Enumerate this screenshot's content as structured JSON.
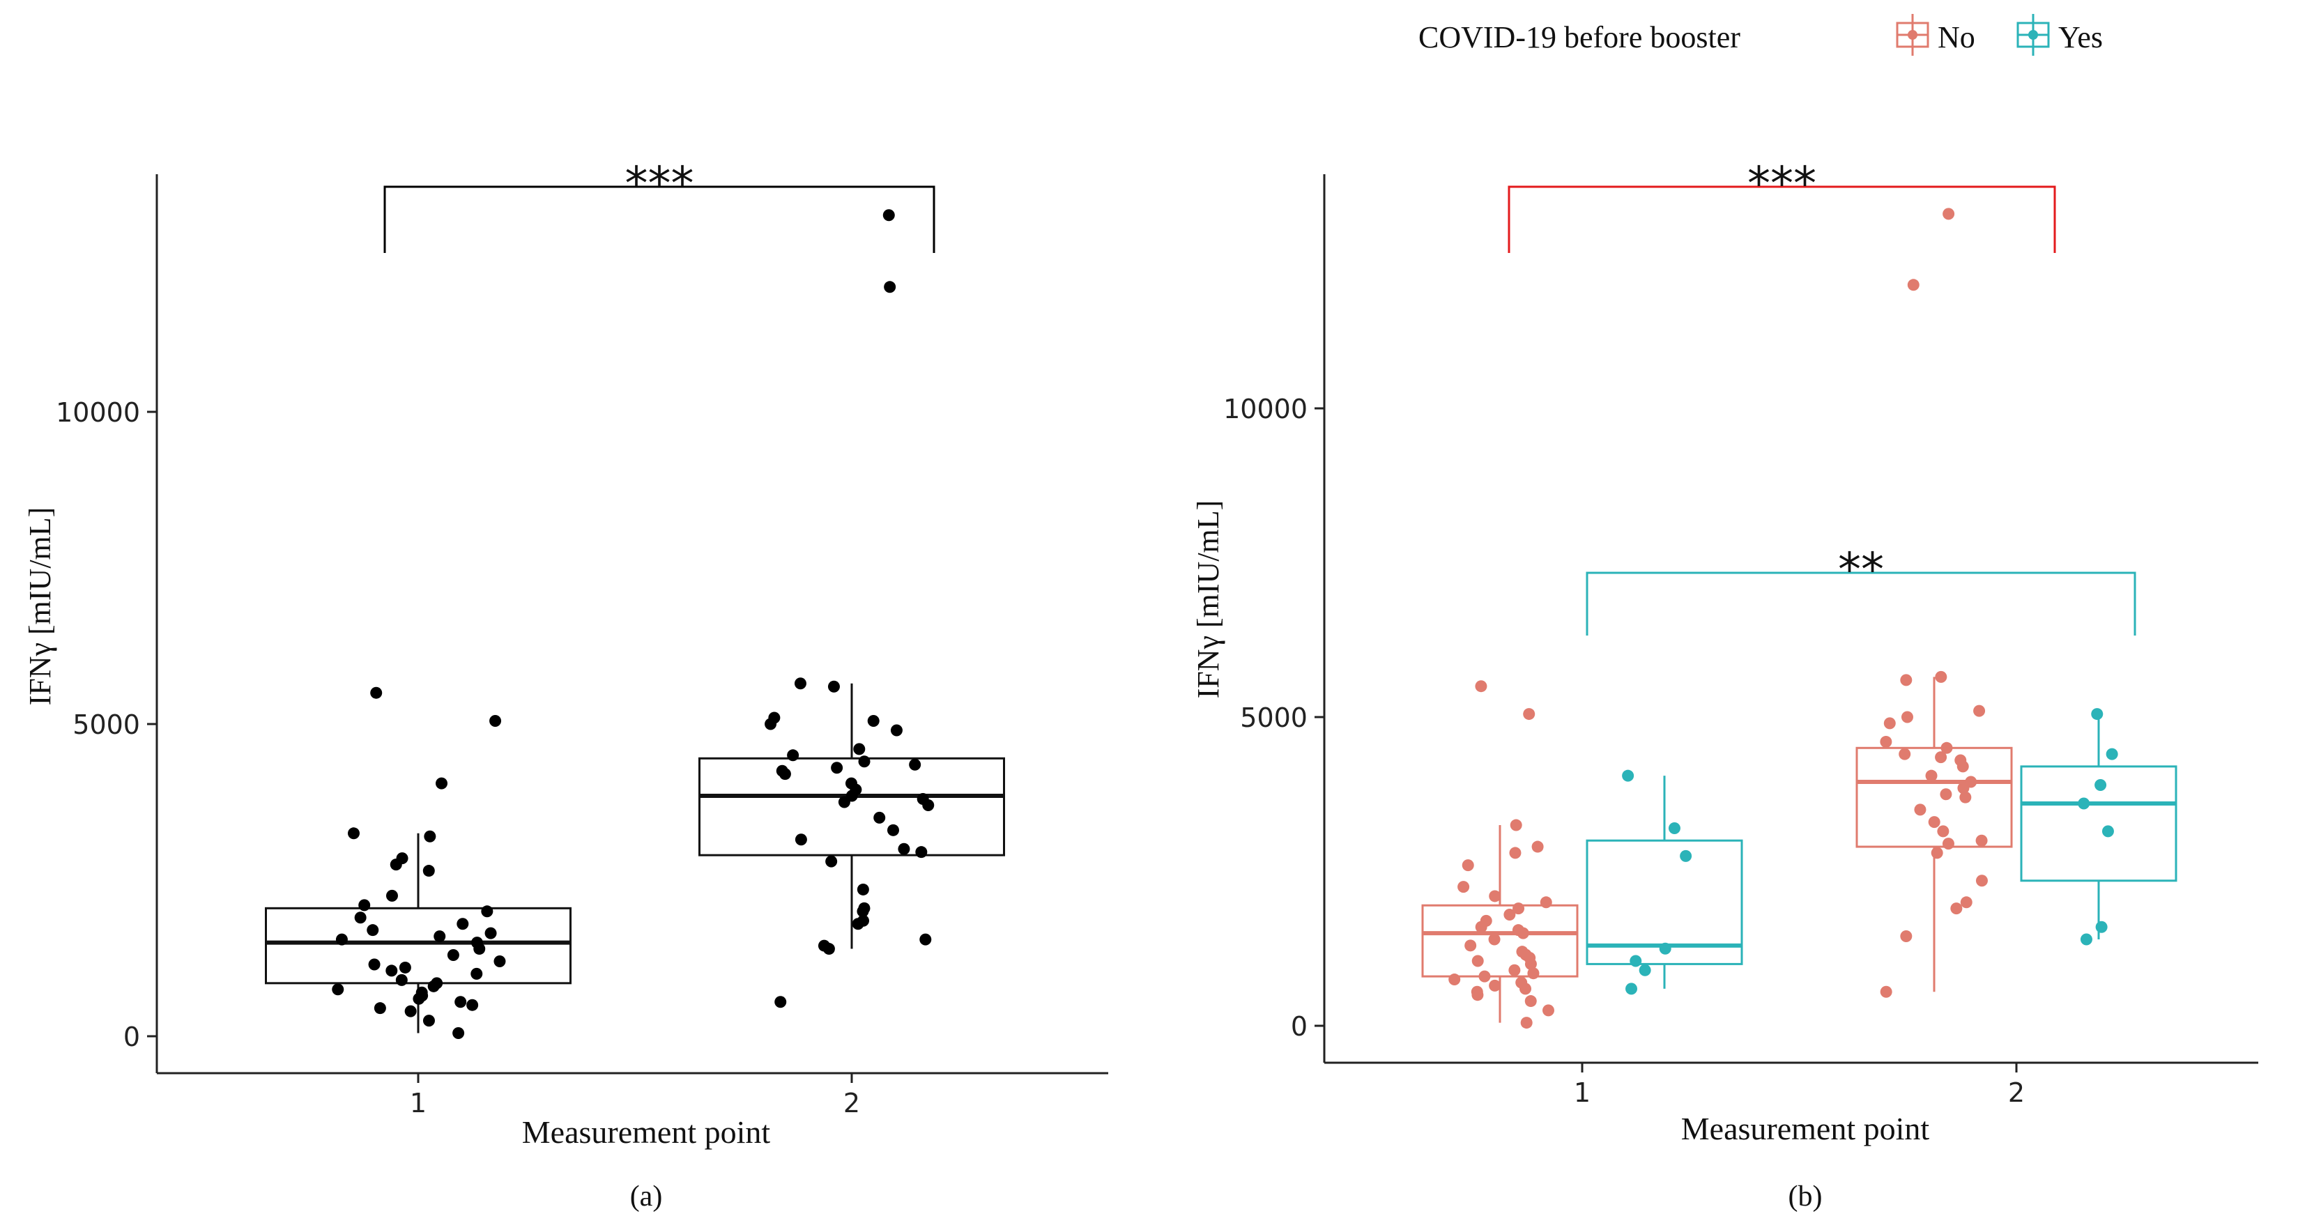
{
  "legend": {
    "title": "COVID-19  before booster",
    "items": [
      {
        "label": "No",
        "color": "#E07B6E"
      },
      {
        "label": "Yes",
        "color": "#2BB3B8"
      }
    ]
  },
  "chart_data": [
    {
      "type": "boxplot",
      "panel_label": "(a)",
      "xlabel": "Measurement point",
      "ylabel": "IFNγ [mIU/mL]",
      "categories": [
        "1",
        "2"
      ],
      "ylim": [
        -500,
        14000
      ],
      "yticks": [
        0,
        5000,
        10000
      ],
      "boxes": [
        {
          "category": "1",
          "q1": 850,
          "median": 1500,
          "q3": 2050,
          "whisker_low": 50,
          "whisker_high": 3250
        },
        {
          "category": "2",
          "q1": 2900,
          "median": 3850,
          "q3": 4450,
          "whisker_low": 1400,
          "whisker_high": 5650
        }
      ],
      "points": [
        {
          "category": "1",
          "values": [
            50,
            250,
            400,
            450,
            500,
            550,
            600,
            650,
            700,
            750,
            800,
            850,
            900,
            1000,
            1050,
            1100,
            1150,
            1200,
            1300,
            1400,
            1500,
            1550,
            1600,
            1650,
            1700,
            1800,
            1900,
            2000,
            2100,
            2250,
            2650,
            2750,
            2850,
            3200,
            3250,
            4050,
            5050,
            5500
          ]
        },
        {
          "category": "2",
          "values": [
            550,
            1400,
            1450,
            1550,
            1800,
            1850,
            2000,
            2050,
            2350,
            2800,
            2950,
            3000,
            3150,
            3300,
            3500,
            3700,
            3750,
            3800,
            3850,
            3950,
            4050,
            4200,
            4250,
            4300,
            4350,
            4400,
            4500,
            4600,
            4900,
            5000,
            5050,
            5100,
            5600,
            5650,
            12000,
            13150
          ]
        }
      ],
      "annotations": [
        {
          "text": "***",
          "from": "1",
          "to": "2",
          "color": "#000000"
        }
      ]
    },
    {
      "type": "boxplot",
      "panel_label": "(b)",
      "xlabel": "Measurement point",
      "ylabel": "IFNγ [mIU/mL]",
      "categories": [
        "1",
        "2"
      ],
      "ylim": [
        -500,
        14000
      ],
      "yticks": [
        0,
        5000,
        10000
      ],
      "legend_title": "COVID-19 before booster",
      "series": [
        {
          "name": "No",
          "color": "#E07B6E",
          "boxes": [
            {
              "category": "1",
              "q1": 800,
              "median": 1500,
              "q3": 1950,
              "whisker_low": 50,
              "whisker_high": 3250
            },
            {
              "category": "2",
              "q1": 2900,
              "median": 3950,
              "q3": 4500,
              "whisker_low": 550,
              "whisker_high": 5650
            }
          ],
          "points": [
            {
              "category": "1",
              "values": [
                50,
                250,
                400,
                500,
                550,
                600,
                650,
                700,
                750,
                800,
                850,
                900,
                1000,
                1050,
                1100,
                1150,
                1200,
                1300,
                1400,
                1500,
                1550,
                1600,
                1700,
                1800,
                1900,
                2000,
                2100,
                2250,
                2600,
                2800,
                2900,
                3250,
                5050,
                5500
              ]
            },
            {
              "category": "2",
              "values": [
                550,
                1450,
                1900,
                2000,
                2350,
                2800,
                2950,
                3000,
                3150,
                3300,
                3500,
                3700,
                3750,
                3850,
                3950,
                4050,
                4200,
                4300,
                4350,
                4400,
                4500,
                4600,
                4900,
                5000,
                5100,
                5600,
                5650,
                12000,
                13150
              ]
            }
          ]
        },
        {
          "name": "Yes",
          "color": "#2BB3B8",
          "boxes": [
            {
              "category": "1",
              "q1": 1000,
              "median": 1300,
              "q3": 3000,
              "whisker_low": 600,
              "whisker_high": 4050
            },
            {
              "category": "2",
              "q1": 2350,
              "median": 3600,
              "q3": 4200,
              "whisker_low": 1400,
              "whisker_high": 5050
            }
          ],
          "points": [
            {
              "category": "1",
              "values": [
                600,
                900,
                1050,
                1250,
                2750,
                3200,
                4050
              ]
            },
            {
              "category": "2",
              "values": [
                1400,
                1600,
                3150,
                3600,
                3900,
                4400,
                5050
              ]
            }
          ]
        }
      ],
      "annotations": [
        {
          "text": "***",
          "from": "1",
          "to": "2",
          "series": "No",
          "color": "#E31A1C"
        },
        {
          "text": "**",
          "from": "1",
          "to": "2",
          "series": "Yes",
          "color": "#2BB3B8"
        }
      ]
    }
  ]
}
